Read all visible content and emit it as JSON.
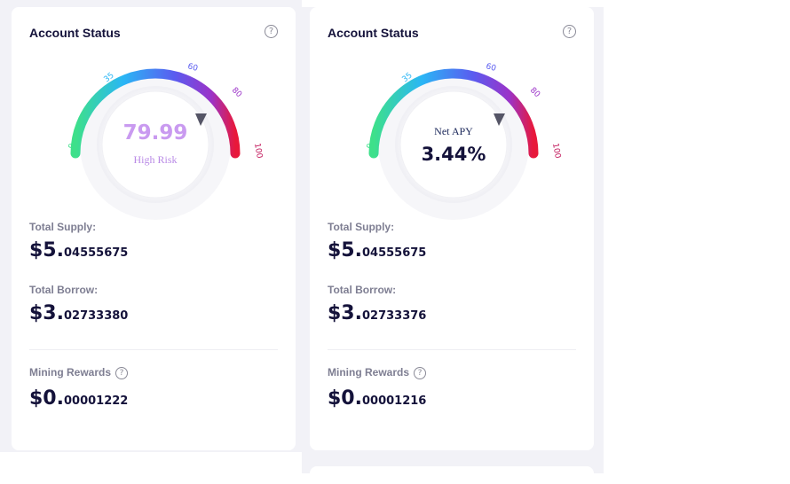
{
  "cards": [
    {
      "title": "Account Status",
      "gauge": {
        "ticks": [
          "0",
          "35",
          "60",
          "80",
          "100"
        ],
        "mode": "risk",
        "value": "79.99",
        "label": "High Risk",
        "level": 79.99
      },
      "total_supply": {
        "label": "Total Supply:",
        "int": "$5.",
        "dec": "04555675"
      },
      "total_borrow": {
        "label": "Total Borrow:",
        "int": "$3.",
        "dec": "02733380"
      },
      "mining_rewards": {
        "label": "Mining Rewards",
        "int": "$0.",
        "dec": "00001222"
      }
    },
    {
      "title": "Account Status",
      "gauge": {
        "ticks": [
          "0",
          "35",
          "60",
          "80",
          "100"
        ],
        "mode": "apy",
        "label": "Net APY",
        "value": "3.44%",
        "level": 79.99
      },
      "total_supply": {
        "label": "Total Supply:",
        "int": "$5.",
        "dec": "04555675"
      },
      "total_borrow": {
        "label": "Total Borrow:",
        "int": "$3.",
        "dec": "02733376"
      },
      "mining_rewards": {
        "label": "Mining Rewards",
        "int": "$0.",
        "dec": "00001216"
      }
    }
  ],
  "colors": {
    "gradient": [
      "#3ee08a",
      "#2ab6f5",
      "#5a5cf0",
      "#9b33c8",
      "#e8183a"
    ],
    "title": "#14123a",
    "muted": "#7e7e92",
    "panel": "#f2f2f7"
  },
  "icons": {
    "help": "question-circle-icon",
    "pointer": "triangle-pointer-icon"
  }
}
